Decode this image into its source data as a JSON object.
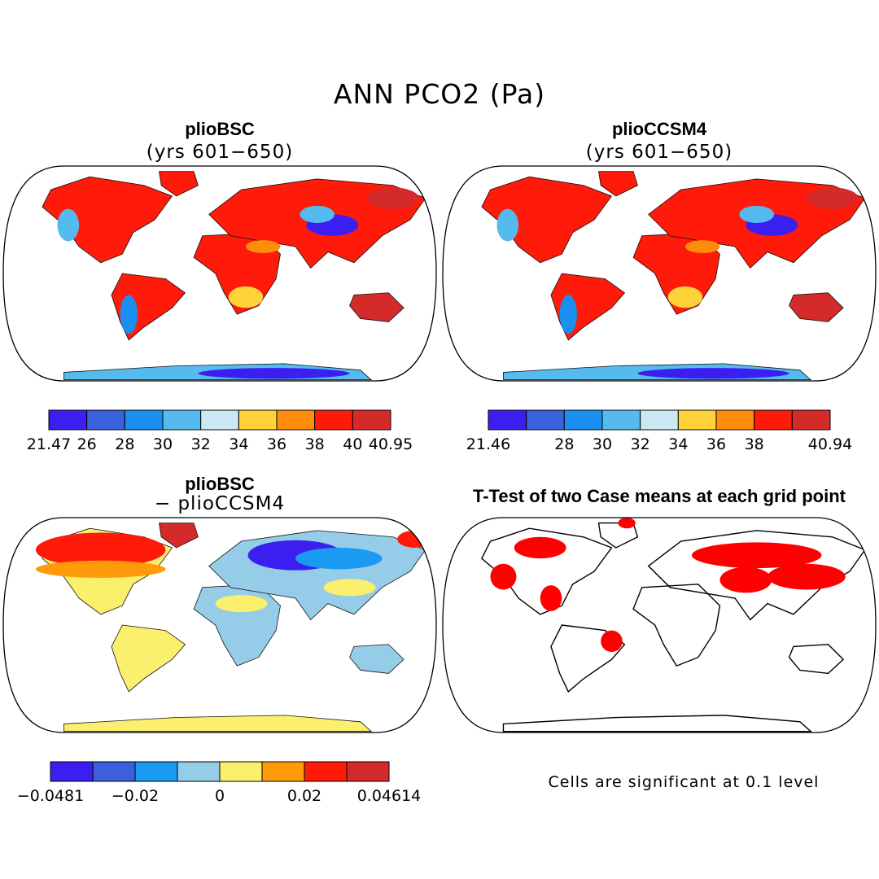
{
  "title": "ANN PCO2 (Pa)",
  "colors": {
    "cb9": [
      "#3a1ff0",
      "#3a60dd",
      "#1a8ff0",
      "#55bbee",
      "#cce8f5",
      "#ffd23a",
      "#ff8c0a",
      "#ff1a0a",
      "#d42a2a"
    ],
    "cb8": [
      "#3a1ff0",
      "#3a60dd",
      "#1a9af0",
      "#95cce8",
      "#fbef6e",
      "#ff9a0a",
      "#ff1a0a",
      "#d42a2a"
    ],
    "land_bg": "#ff1a0a",
    "sig": "#ff0000"
  },
  "panels": [
    {
      "title": "plioBSC",
      "subtitle": "(yrs 601−650)"
    },
    {
      "title": "plioCCSM4",
      "subtitle": "(yrs 601−650)"
    },
    {
      "title": "plioBSC",
      "subtitle": "− plioCCSM4"
    },
    {
      "title": "T-Test of two Case means at each grid point",
      "subtitle": ""
    }
  ],
  "note": "Cells are significant at 0.1 level",
  "chart_data": [
    {
      "type": "heatmap",
      "title": "plioBSC (yrs 601−650)",
      "variable": "ANN PCO2 (Pa)",
      "colorbar_levels": [
        21.47,
        26,
        28,
        30,
        32,
        34,
        36,
        38,
        40,
        40.95
      ],
      "colorbar_tick_labels": [
        "21.47",
        "26",
        "28",
        "30",
        "32",
        "34",
        "36",
        "38",
        "40",
        "40.95"
      ]
    },
    {
      "type": "heatmap",
      "title": "plioCCSM4 (yrs 601−650)",
      "variable": "ANN PCO2 (Pa)",
      "colorbar_levels": [
        21.46,
        26,
        28,
        30,
        32,
        34,
        36,
        38,
        40,
        40.94
      ],
      "colorbar_tick_labels": [
        "21.46",
        "",
        "28",
        "30",
        "32",
        "34",
        "36",
        "38",
        "",
        "40.94"
      ]
    },
    {
      "type": "heatmap",
      "title": "plioBSC − plioCCSM4",
      "variable": "ANN PCO2 (Pa) difference",
      "colorbar_levels": [
        -0.0481,
        -0.03,
        -0.02,
        -0.01,
        0,
        0.01,
        0.02,
        0.03,
        0.04614
      ],
      "colorbar_tick_labels": [
        "−0.0481",
        "",
        "−0.02",
        "",
        "0",
        "",
        "0.02",
        "",
        "0.04614"
      ]
    },
    {
      "type": "heatmap",
      "title": "T-Test of two Case means at each grid point",
      "significance_level": 0.1
    }
  ]
}
